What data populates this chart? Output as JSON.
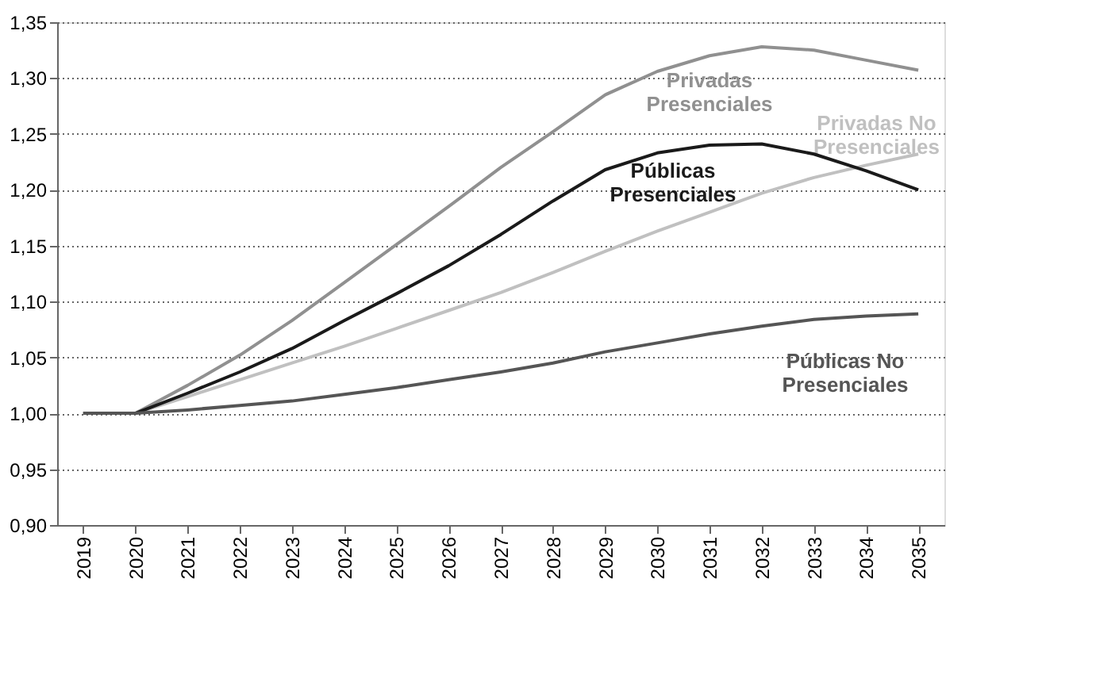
{
  "chart_data": {
    "type": "line",
    "categories": [
      "2019",
      "2020",
      "2021",
      "2022",
      "2023",
      "2024",
      "2025",
      "2026",
      "2027",
      "2028",
      "2029",
      "2030",
      "2031",
      "2032",
      "2033",
      "2034",
      "2035"
    ],
    "ylim": [
      0.9,
      1.35
    ],
    "yticks": [
      {
        "value": 0.9,
        "label": "0,90"
      },
      {
        "value": 0.95,
        "label": "0,95"
      },
      {
        "value": 1.0,
        "label": "1,00"
      },
      {
        "value": 1.05,
        "label": "1,05"
      },
      {
        "value": 1.1,
        "label": "1,10"
      },
      {
        "value": 1.15,
        "label": "1,15"
      },
      {
        "value": 1.2,
        "label": "1,20"
      },
      {
        "value": 1.25,
        "label": "1,25"
      },
      {
        "value": 1.3,
        "label": "1,30"
      },
      {
        "value": 1.35,
        "label": "1,35"
      }
    ],
    "grid": "y",
    "legend": false,
    "marker": "none",
    "line_style": "solid",
    "series": [
      {
        "name": "Privadas Presenciales",
        "color": "#909090",
        "values": [
          1.0,
          1.0,
          1.025,
          1.052,
          1.083,
          1.117,
          1.151,
          1.185,
          1.22,
          1.252,
          1.285,
          1.306,
          1.32,
          1.328,
          1.325,
          1.316,
          1.307
        ]
      },
      {
        "name": "Privadas No Presenciales",
        "color": "#c0c0c0",
        "values": [
          1.0,
          1.0,
          1.015,
          1.03,
          1.045,
          1.06,
          1.076,
          1.092,
          1.108,
          1.126,
          1.145,
          1.163,
          1.18,
          1.197,
          1.211,
          1.222,
          1.232
        ]
      },
      {
        "name": "Públicas Presenciales",
        "color": "#1a1a1a",
        "values": [
          1.0,
          1.0,
          1.018,
          1.037,
          1.058,
          1.083,
          1.107,
          1.132,
          1.16,
          1.19,
          1.218,
          1.233,
          1.24,
          1.241,
          1.232,
          1.217,
          1.2
        ]
      },
      {
        "name": "Públicas No Presenciales",
        "color": "#555555",
        "values": [
          1.0,
          1.0,
          1.003,
          1.007,
          1.011,
          1.017,
          1.023,
          1.03,
          1.037,
          1.045,
          1.055,
          1.063,
          1.071,
          1.078,
          1.084,
          1.087,
          1.089
        ]
      }
    ]
  }
}
